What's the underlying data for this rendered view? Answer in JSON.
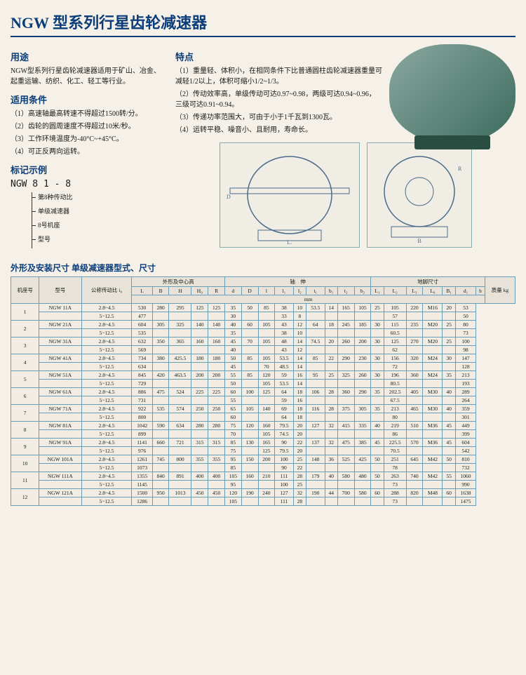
{
  "title": "NGW 型系列行星齿轮减速器",
  "sections": {
    "usage_title": "用途",
    "usage_text": "NGW型系列行星齿轮减速器适用于矿山、冶金、起重运输、纺织、化工、轻工等行业。",
    "conditions_title": "适用条件",
    "conditions": [
      "（1）高速轴最高转速不得超过1500转/分。",
      "（2）齿轮的圆周速度不得超过10米/秒。",
      "（3）工作环境温度为-40°C~+45°C。",
      "（4）可正反两向运转。"
    ],
    "features_title": "特点",
    "features": [
      "（1）重量轻、体积小，在相同条件下比普通圆柱齿轮减速器重量可减轻1/2以上，体积可缩小1/2~1/3。",
      "（2）传动效率高，单级传动可达0.97~0.98，两级可达0.94~0.96，三级可达0.91~0.94。",
      "（3）传递功率范围大，可由于小于1千瓦到1300瓦。",
      "（4）运转平稳、噪音小、且耐用，寿命长。"
    ],
    "marking_title": "标记示例",
    "marking_code": "NGW 8 1 - 8",
    "marking_labels": [
      "第8种传动比",
      "单级减速器",
      "8号机座",
      "型号"
    ],
    "dims_title": "外形及安装尺寸\n单级减速器型式、尺寸",
    "table_headers": {
      "group1": "机座号",
      "group2": "型号",
      "group3": "公称传动比 i₀",
      "group4": "外形及中心高",
      "group5": "轴　伸",
      "group6": "地脚尺寸",
      "group7": "质量 kg",
      "cols": [
        "L",
        "B",
        "H",
        "H₀",
        "R",
        "d",
        "D",
        "l",
        "l₁",
        "l₂",
        "t₁",
        "b₁",
        "t₂",
        "b₂",
        "L₁",
        "L₂",
        "L₃",
        "L₀",
        "B₁",
        "d₁",
        "h"
      ]
    }
  },
  "table_rows": [
    {
      "seat": "1",
      "rows": [
        [
          "NGW 11A",
          "2.8~4.5",
          "530",
          "280",
          "295",
          "125",
          "125",
          "35",
          "50",
          "85",
          "38",
          "10",
          "53.5",
          "14",
          "165",
          "105",
          "25",
          "105",
          "220",
          "M16",
          "20",
          "53"
        ],
        [
          "",
          "5~12.5",
          "477",
          "",
          "",
          "",
          "",
          "30",
          "",
          "",
          "33",
          "8",
          "",
          "",
          "",
          "",
          "",
          "57",
          "",
          "",
          "",
          "50"
        ]
      ]
    },
    {
      "seat": "2",
      "rows": [
        [
          "NGW 21A",
          "2.8~4.5",
          "604",
          "305",
          "325",
          "140",
          "140",
          "40",
          "60",
          "105",
          "43",
          "12",
          "64",
          "18",
          "245",
          "185",
          "30",
          "115",
          "235",
          "M20",
          "25",
          "80"
        ],
        [
          "",
          "5~12.5",
          "535",
          "",
          "",
          "",
          "",
          "35",
          "",
          "",
          "38",
          "10",
          "",
          "",
          "",
          "",
          "",
          "60.5",
          "",
          "",
          "",
          "73"
        ]
      ]
    },
    {
      "seat": "3",
      "rows": [
        [
          "NGW 31A",
          "2.8~4.5",
          "632",
          "350",
          "365",
          "160",
          "160",
          "45",
          "70",
          "105",
          "48",
          "14",
          "74.5",
          "20",
          "260",
          "200",
          "30",
          "125",
          "270",
          "M20",
          "25",
          "100"
        ],
        [
          "",
          "5~12.5",
          "569",
          "",
          "",
          "",
          "",
          "40",
          "",
          "",
          "43",
          "12",
          "",
          "",
          "",
          "",
          "",
          "62",
          "",
          "",
          "",
          "98"
        ]
      ]
    },
    {
      "seat": "4",
      "rows": [
        [
          "NGW 41A",
          "2.8~4.5",
          "734",
          "380",
          "425.5",
          "180",
          "180",
          "50",
          "85",
          "105",
          "53.5",
          "14",
          "85",
          "22",
          "290",
          "230",
          "30",
          "156",
          "320",
          "M24",
          "30",
          "147"
        ],
        [
          "",
          "5~12.5",
          "634",
          "",
          "",
          "",
          "",
          "45",
          "",
          "70",
          "48.5",
          "14",
          "",
          "",
          "",
          "",
          "",
          "72",
          "",
          "",
          "",
          "128"
        ]
      ]
    },
    {
      "seat": "5",
      "rows": [
        [
          "NGW 51A",
          "2.8~4.5",
          "845",
          "420",
          "463.5",
          "200",
          "200",
          "55",
          "85",
          "120",
          "59",
          "16",
          "95",
          "25",
          "325",
          "260",
          "30",
          "196",
          "360",
          "M24",
          "35",
          "213"
        ],
        [
          "",
          "5~12.5",
          "729",
          "",
          "",
          "",
          "",
          "50",
          "",
          "105",
          "53.5",
          "14",
          "",
          "",
          "",
          "",
          "",
          "80.5",
          "",
          "",
          "",
          "193"
        ]
      ]
    },
    {
      "seat": "6",
      "rows": [
        [
          "NGW 61A",
          "2.8~4.5",
          "886",
          "475",
          "524",
          "225",
          "225",
          "60",
          "100",
          "125",
          "64",
          "18",
          "106",
          "28",
          "360",
          "290",
          "35",
          "202.5",
          "405",
          "M30",
          "40",
          "289"
        ],
        [
          "",
          "5~12.5",
          "731",
          "",
          "",
          "",
          "",
          "55",
          "",
          "",
          "59",
          "16",
          "",
          "",
          "",
          "",
          "",
          "67.5",
          "",
          "",
          "",
          "264"
        ]
      ]
    },
    {
      "seat": "7",
      "rows": [
        [
          "NGW 71A",
          "2.8~4.5",
          "922",
          "535",
          "574",
          "250",
          "250",
          "65",
          "105",
          "140",
          "69",
          "18",
          "116",
          "28",
          "375",
          "305",
          "35",
          "213",
          "465",
          "M30",
          "40",
          "359"
        ],
        [
          "",
          "5~12.5",
          "800",
          "",
          "",
          "",
          "",
          "60",
          "",
          "",
          "64",
          "18",
          "",
          "",
          "",
          "",
          "",
          "80",
          "",
          "",
          "",
          "301"
        ]
      ]
    },
    {
      "seat": "8",
      "rows": [
        [
          "NGW 81A",
          "2.8~4.5",
          "1042",
          "590",
          "634",
          "280",
          "280",
          "75",
          "120",
          "160",
          "79.5",
          "20",
          "127",
          "32",
          "415",
          "335",
          "40",
          "219",
          "510",
          "M36",
          "45",
          "449"
        ],
        [
          "",
          "5~12.5",
          "899",
          "",
          "",
          "",
          "",
          "70",
          "",
          "105",
          "74.5",
          "20",
          "",
          "",
          "",
          "",
          "",
          "86",
          "",
          "",
          "",
          "399"
        ]
      ]
    },
    {
      "seat": "9",
      "rows": [
        [
          "NGW 91A",
          "2.8~4.5",
          "1141",
          "660",
          "721",
          "315",
          "315",
          "85",
          "130",
          "165",
          "90",
          "22",
          "137",
          "32",
          "475",
          "385",
          "45",
          "225.5",
          "570",
          "M36",
          "45",
          "604"
        ],
        [
          "",
          "5~12.5",
          "976",
          "",
          "",
          "",
          "",
          "75",
          "",
          "125",
          "79.5",
          "20",
          "",
          "",
          "",
          "",
          "",
          "70.5",
          "",
          "",
          "",
          "542"
        ]
      ]
    },
    {
      "seat": "10",
      "rows": [
        [
          "NGW 101A",
          "2.8~4.5",
          "1261",
          "745",
          "800",
          "355",
          "355",
          "95",
          "150",
          "200",
          "100",
          "25",
          "148",
          "36",
          "525",
          "425",
          "50",
          "251",
          "645",
          "M42",
          "50",
          "810"
        ],
        [
          "",
          "5~12.5",
          "1073",
          "",
          "",
          "",
          "",
          "85",
          "",
          "",
          "90",
          "22",
          "",
          "",
          "",
          "",
          "",
          "78",
          "",
          "",
          "",
          "732"
        ]
      ]
    },
    {
      "seat": "11",
      "rows": [
        [
          "NGW 111A",
          "2.8~4.5",
          "1355",
          "840",
          "891",
          "400",
          "400",
          "105",
          "160",
          "210",
          "111",
          "28",
          "179",
          "40",
          "580",
          "480",
          "50",
          "263",
          "740",
          "M42",
          "55",
          "1060"
        ],
        [
          "",
          "5~12.5",
          "1145",
          "",
          "",
          "",
          "",
          "95",
          "",
          "",
          "100",
          "25",
          "",
          "",
          "",
          "",
          "",
          "73",
          "",
          "",
          "",
          "990"
        ]
      ]
    },
    {
      "seat": "12",
      "rows": [
        [
          "NGW 121A",
          "2.8~4.5",
          "1500",
          "950",
          "1013",
          "450",
          "450",
          "120",
          "190",
          "240",
          "127",
          "32",
          "190",
          "44",
          "700",
          "580",
          "60",
          "288",
          "820",
          "M48",
          "60",
          "1638"
        ],
        [
          "",
          "5~12.5",
          "1286",
          "",
          "",
          "",
          "",
          "105",
          "",
          "",
          "111",
          "28",
          "",
          "",
          "",
          "",
          "",
          "73",
          "",
          "",
          "",
          "1475"
        ]
      ]
    }
  ],
  "colors": {
    "title_color": "#0a3d7a",
    "border_color": "#6a9db5",
    "bg": "#f5f0e8"
  }
}
